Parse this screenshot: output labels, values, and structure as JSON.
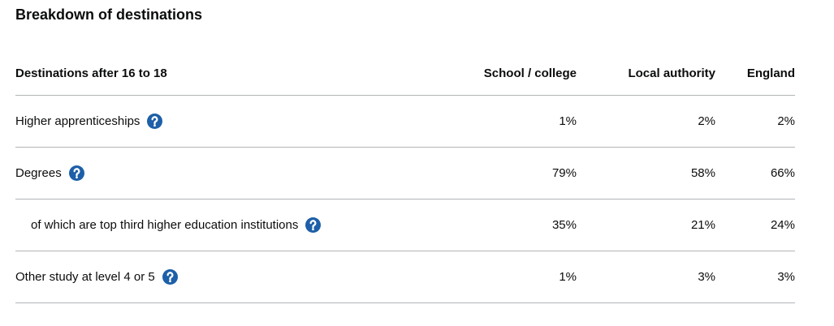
{
  "title": "Breakdown of destinations",
  "table": {
    "header": [
      "Destinations after 16 to 18",
      "School / college",
      "Local authority",
      "England"
    ],
    "rows": [
      [
        "Higher apprenticeships",
        "1%",
        "2%",
        "2%"
      ],
      [
        "Degrees",
        "79%",
        "58%",
        "66%"
      ],
      [
        "of which are top third higher education institutions",
        "35%",
        "21%",
        "24%"
      ],
      [
        "Other study at level 4 or 5",
        "1%",
        "3%",
        "3%"
      ]
    ]
  }
}
